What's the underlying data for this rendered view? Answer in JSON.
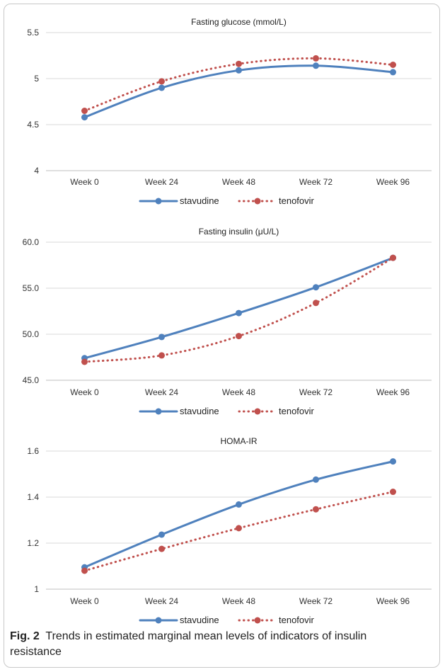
{
  "chart_data": [
    {
      "type": "line",
      "title": "Fasting glucose (mmol/L)",
      "xlabel": "",
      "ylabel": "",
      "categories": [
        "Week 0",
        "Week 24",
        "Week 48",
        "Week 72",
        "Week 96"
      ],
      "yticks": [
        "4",
        "4.5",
        "5",
        "5.5"
      ],
      "ylim": [
        4,
        5.5
      ],
      "grid": true,
      "legend": "bottom",
      "series": [
        {
          "name": "stavudine",
          "values": [
            4.58,
            4.9,
            5.09,
            5.14,
            5.07
          ],
          "color": "#4f81bd",
          "style": "solid"
        },
        {
          "name": "tenofovir",
          "values": [
            4.65,
            4.97,
            5.16,
            5.22,
            5.15
          ],
          "color": "#c0504d",
          "style": "dotted"
        }
      ]
    },
    {
      "type": "line",
      "title": "Fasting insulin (μU/L)",
      "xlabel": "",
      "ylabel": "",
      "categories": [
        "Week 0",
        "Week 24",
        "Week 48",
        "Week 72",
        "Week 96"
      ],
      "yticks": [
        "45.0",
        "50.0",
        "55.0",
        "60.0"
      ],
      "ylim": [
        45,
        60
      ],
      "grid": true,
      "legend": "bottom",
      "series": [
        {
          "name": "stavudine",
          "values": [
            47.4,
            49.7,
            52.3,
            55.1,
            58.3
          ],
          "color": "#4f81bd",
          "style": "solid"
        },
        {
          "name": "tenofovir",
          "values": [
            47.0,
            47.7,
            49.8,
            53.4,
            58.3
          ],
          "color": "#c0504d",
          "style": "dotted"
        }
      ]
    },
    {
      "type": "line",
      "title": "HOMA-IR",
      "xlabel": "",
      "ylabel": "",
      "categories": [
        "Week 0",
        "Week 24",
        "Week 48",
        "Week 72",
        "Week 96"
      ],
      "yticks": [
        "1",
        "1.2",
        "1.4",
        "1.6"
      ],
      "ylim": [
        1,
        1.6
      ],
      "grid": true,
      "legend": "bottom",
      "series": [
        {
          "name": "stavudine",
          "values": [
            1.095,
            1.237,
            1.368,
            1.476,
            1.555
          ],
          "color": "#4f81bd",
          "style": "solid"
        },
        {
          "name": "tenofovir",
          "values": [
            1.08,
            1.175,
            1.265,
            1.347,
            1.423
          ],
          "color": "#c0504d",
          "style": "dotted"
        }
      ]
    }
  ],
  "caption": {
    "label": "Fig. 2",
    "text": "Trends in estimated marginal mean levels of indicators of insulin resistance"
  }
}
